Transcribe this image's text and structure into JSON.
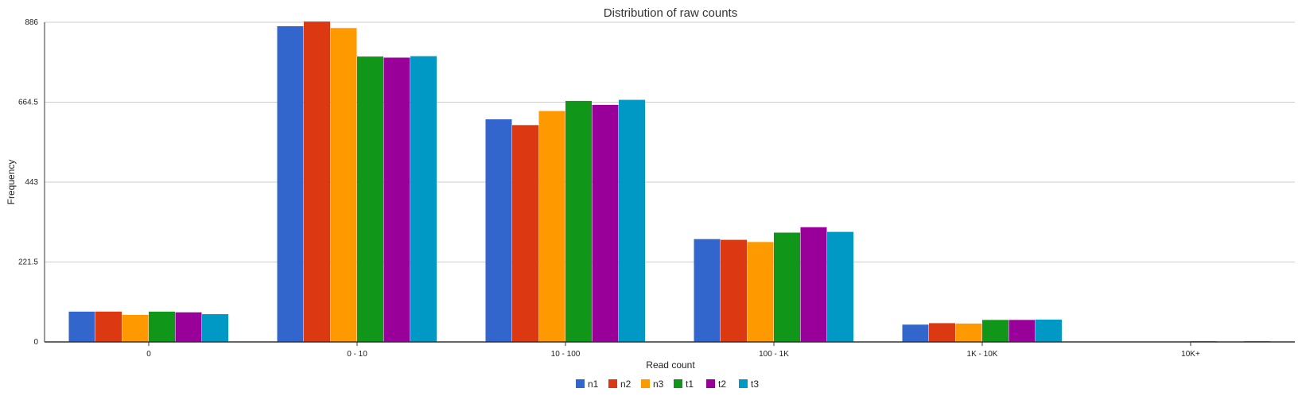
{
  "chart_data": {
    "type": "bar",
    "title": "Distribution of raw counts",
    "xlabel": "Read count",
    "ylabel": "Frequency",
    "ylim": [
      0,
      886
    ],
    "yticks": [
      0,
      221.5,
      443,
      664.5,
      886
    ],
    "ytick_labels": [
      "0",
      "221.5",
      "443",
      "664.5",
      "886"
    ],
    "grid": true,
    "legend_position": "bottom-center",
    "categories": [
      "0",
      "0 - 10",
      "10 - 100",
      "100 - 1K",
      "1K - 10K",
      "10K+"
    ],
    "series": [
      {
        "name": "n1",
        "color": "#3366CC",
        "values": [
          84,
          875,
          617,
          285,
          48,
          1
        ]
      },
      {
        "name": "n2",
        "color": "#DC3912",
        "values": [
          84,
          888,
          601,
          283,
          52,
          1
        ]
      },
      {
        "name": "n3",
        "color": "#FF9900",
        "values": [
          75,
          870,
          640,
          277,
          51,
          1
        ]
      },
      {
        "name": "t1",
        "color": "#109618",
        "values": [
          84,
          791,
          668,
          303,
          61,
          2
        ]
      },
      {
        "name": "t2",
        "color": "#990099",
        "values": [
          82,
          788,
          657,
          318,
          61,
          1
        ]
      },
      {
        "name": "t3",
        "color": "#0099C6",
        "values": [
          77,
          792,
          671,
          305,
          62,
          2
        ]
      }
    ]
  }
}
